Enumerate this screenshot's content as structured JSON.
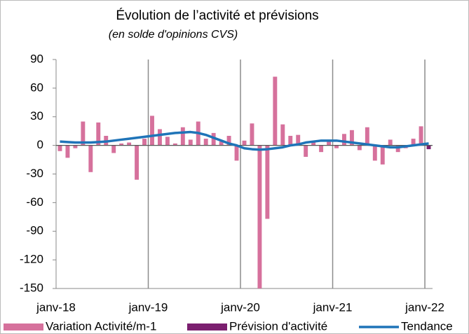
{
  "chart_data": {
    "type": "bar",
    "title": "Évolution de l’activité et prévisions",
    "subtitle": "(en solde d'opinions CVS)",
    "categories": [
      "janv-18",
      null,
      null,
      null,
      null,
      null,
      null,
      null,
      null,
      null,
      null,
      null,
      "janv-19",
      null,
      null,
      null,
      null,
      null,
      null,
      null,
      null,
      null,
      null,
      null,
      "janv-20",
      null,
      null,
      null,
      null,
      null,
      null,
      null,
      null,
      null,
      null,
      null,
      "janv-21",
      null,
      null,
      null,
      null,
      null,
      null,
      null,
      null,
      null,
      null,
      null,
      "janv-22"
    ],
    "series": [
      {
        "name": "Variation Activité/m-1",
        "type": "bar",
        "color": "#d6719c",
        "values": [
          -6,
          -13,
          -3,
          25,
          -28,
          24,
          10,
          -8,
          2,
          3,
          -36,
          7,
          31,
          17,
          9,
          2,
          19,
          6,
          25,
          7,
          13,
          4,
          10,
          -16,
          5,
          23,
          -150,
          -77,
          72,
          22,
          10,
          11,
          -12,
          4,
          -7,
          4,
          -3,
          12,
          16,
          -5,
          19,
          -16,
          -20,
          6,
          -7,
          -3,
          7,
          20,
          null
        ]
      },
      {
        "name": "Prévision d'activité",
        "type": "bar",
        "color": "#7b1f6f",
        "values": [
          null,
          null,
          null,
          null,
          null,
          null,
          null,
          null,
          null,
          null,
          null,
          null,
          null,
          null,
          null,
          null,
          null,
          null,
          null,
          null,
          null,
          null,
          null,
          null,
          null,
          null,
          null,
          null,
          null,
          null,
          null,
          null,
          null,
          null,
          null,
          null,
          null,
          null,
          null,
          null,
          null,
          null,
          null,
          null,
          null,
          null,
          null,
          null,
          -4
        ]
      },
      {
        "name": "Tendance",
        "type": "line",
        "color": "#1f74b8",
        "values": [
          4,
          3.5,
          3,
          3,
          3,
          3.5,
          4,
          5,
          6,
          7,
          8,
          9,
          10,
          11,
          12,
          13,
          13.5,
          14,
          13,
          11,
          8,
          5,
          2,
          0,
          -3,
          -4,
          -4.5,
          -4,
          -3,
          -2,
          0,
          1,
          3,
          4,
          5,
          5,
          5,
          4,
          3,
          2,
          1,
          0,
          -1,
          -2,
          -2,
          -1,
          0,
          1,
          2
        ]
      }
    ],
    "ylim": [
      -150,
      90
    ],
    "yticks": [
      -150,
      -120,
      -90,
      -60,
      -30,
      0,
      30,
      60,
      90
    ],
    "grid": false,
    "legend": "bottom"
  }
}
